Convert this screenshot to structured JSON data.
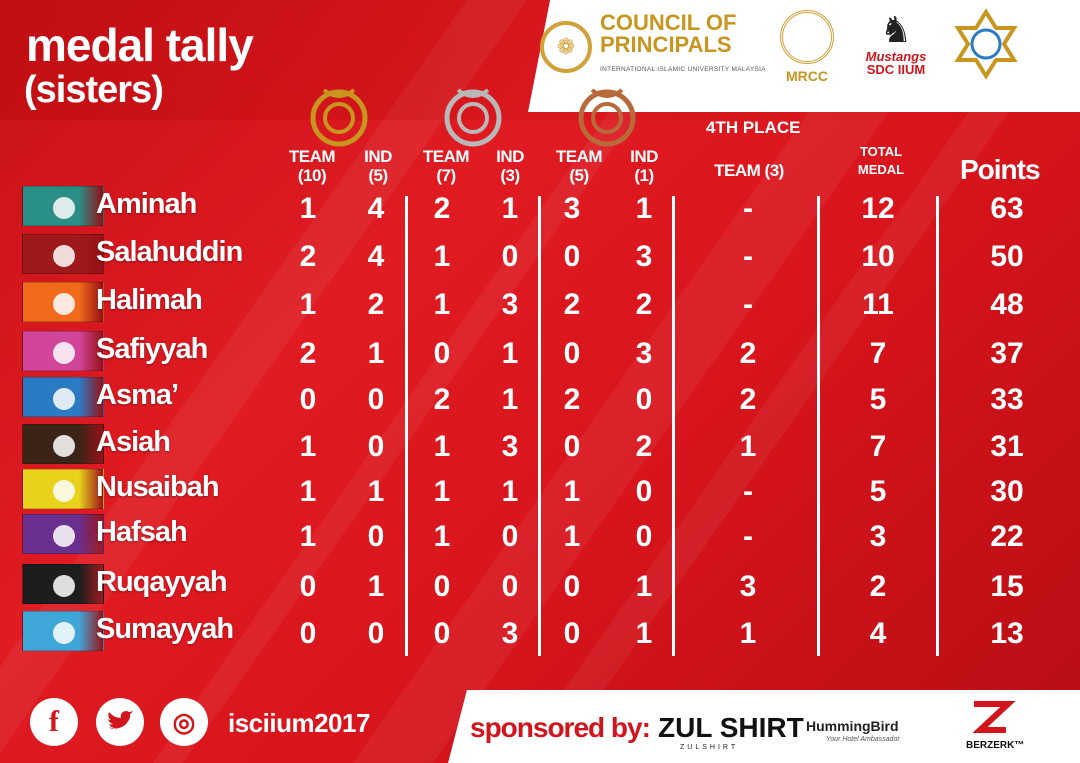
{
  "title": "medal tally",
  "subtitle": "(sisters)",
  "logos": {
    "council_line1": "COUNCIL OF",
    "council_line2": "PRINCIPALS",
    "council_sub": "INTERNATIONAL ISLAMIC UNIVERSITY MALAYSIA",
    "mrcc": "MRCC",
    "mustangs": "Mustangs",
    "sdc": "SDC IIUM"
  },
  "headers": {
    "gold_team": "TEAM",
    "gold_team_pts": "(10)",
    "gold_ind": "IND",
    "gold_ind_pts": "(5)",
    "silver_team": "TEAM",
    "silver_team_pts": "(7)",
    "silver_ind": "IND",
    "silver_ind_pts": "(3)",
    "bronze_team": "TEAM",
    "bronze_team_pts": "(5)",
    "bronze_ind": "IND",
    "bronze_ind_pts": "(1)",
    "fourth_place": "4TH PLACE",
    "fourth_team": "TEAM (3)",
    "total_line1": "TOTAL",
    "total_line2": "MEDAL",
    "points": "Points"
  },
  "colors": {
    "gold": "#c8951f",
    "silver": "#b8b8b8",
    "bronze": "#b86a3a",
    "accent": "#d2141c"
  },
  "teams": [
    {
      "name": "Aminah",
      "gt": "1",
      "gi": "4",
      "st": "2",
      "si": "1",
      "bt": "3",
      "bi": "1",
      "fourth": "-",
      "total": "12",
      "points": "63",
      "banner": "#2a8f86"
    },
    {
      "name": "Salahuddin",
      "gt": "2",
      "gi": "4",
      "st": "1",
      "si": "0",
      "bt": "0",
      "bi": "3",
      "fourth": "-",
      "total": "10",
      "points": "50",
      "banner": "#9e1a1a"
    },
    {
      "name": "Halimah",
      "gt": "1",
      "gi": "2",
      "st": "1",
      "si": "3",
      "bt": "2",
      "bi": "2",
      "fourth": "-",
      "total": "11",
      "points": "48",
      "banner": "#f26a1b"
    },
    {
      "name": "Safiyyah",
      "gt": "2",
      "gi": "1",
      "st": "0",
      "si": "1",
      "bt": "0",
      "bi": "3",
      "fourth": "2",
      "total": "7",
      "points": "37",
      "banner": "#d1459a"
    },
    {
      "name": "Asma’",
      "gt": "0",
      "gi": "0",
      "st": "2",
      "si": "1",
      "bt": "2",
      "bi": "0",
      "fourth": "2",
      "total": "5",
      "points": "33",
      "banner": "#2b7bc4"
    },
    {
      "name": "Asiah",
      "gt": "1",
      "gi": "0",
      "st": "1",
      "si": "3",
      "bt": "0",
      "bi": "2",
      "fourth": "1",
      "total": "7",
      "points": "31",
      "banner": "#3a2418"
    },
    {
      "name": "Nusaibah",
      "gt": "1",
      "gi": "1",
      "st": "1",
      "si": "1",
      "bt": "1",
      "bi": "0",
      "fourth": "-",
      "total": "5",
      "points": "30",
      "banner": "#e8d21c"
    },
    {
      "name": "Hafsah",
      "gt": "1",
      "gi": "0",
      "st": "1",
      "si": "0",
      "bt": "1",
      "bi": "0",
      "fourth": "-",
      "total": "3",
      "points": "22",
      "banner": "#6b2f8f"
    },
    {
      "name": "Ruqayyah",
      "gt": "0",
      "gi": "1",
      "st": "0",
      "si": "0",
      "bt": "0",
      "bi": "1",
      "fourth": "3",
      "total": "2",
      "points": "15",
      "banner": "#1d1d1d"
    },
    {
      "name": "Sumayyah",
      "gt": "0",
      "gi": "0",
      "st": "0",
      "si": "3",
      "bt": "0",
      "bi": "1",
      "fourth": "1",
      "total": "4",
      "points": "13",
      "banner": "#3fa6d8"
    }
  ],
  "footer": {
    "facebook": "f",
    "instagram": "◎",
    "handle": "isciium2017",
    "sponsored_by": "sponsored by:",
    "zul": "ZUL SHIRT",
    "zul_sub": "ZULSHIRT",
    "hummingbird": "HummingBird",
    "hummingbird_sub": "Your Hotel Ambassador",
    "berzerk": "BERZERK™"
  }
}
